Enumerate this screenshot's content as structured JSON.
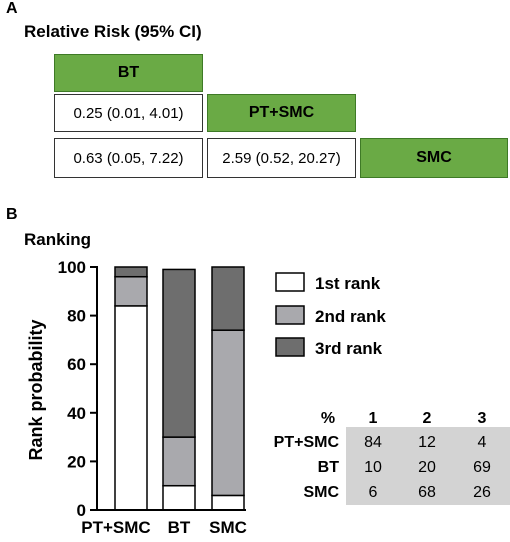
{
  "panelA": {
    "letter": "A",
    "title": "Relative Risk (95% CI)",
    "treatments": [
      "BT",
      "PT+SMC",
      "SMC"
    ],
    "treatment_color": "#6aaa45",
    "values": {
      "pt_smc_vs_bt": "0.25 (0.01, 4.01)",
      "smc_vs_bt": "0.63 (0.05, 7.22)",
      "smc_vs_pt_smc": "2.59 (0.52, 20.27)"
    }
  },
  "panelB": {
    "letter": "B",
    "title": "Ranking"
  },
  "chart_data": {
    "type": "bar",
    "stacked": true,
    "categories": [
      "PT+SMC",
      "BT",
      "SMC"
    ],
    "ylabel": "Rank probability",
    "ylim": [
      0,
      100
    ],
    "yticks": [
      0,
      20,
      40,
      60,
      80,
      100
    ],
    "legend_position": "right",
    "series": [
      {
        "name": "1st  rank",
        "values": [
          84,
          10,
          6
        ],
        "color": "#ffffff"
      },
      {
        "name": "2nd rank",
        "values": [
          12,
          20,
          68
        ],
        "color": "#a9a9ad"
      },
      {
        "name": "3rd  rank",
        "values": [
          4,
          69,
          26
        ],
        "color": "#6e6e6e"
      }
    ]
  },
  "ranktable": {
    "header": [
      "%",
      "1",
      "2",
      "3"
    ],
    "rows": [
      {
        "label": "PT+SMC",
        "cells": [
          "84",
          "12",
          "4"
        ]
      },
      {
        "label": "BT",
        "cells": [
          "10",
          "20",
          "69"
        ]
      },
      {
        "label": "SMC",
        "cells": [
          "6",
          "68",
          "26"
        ]
      }
    ],
    "background": "#d3d3d3"
  }
}
